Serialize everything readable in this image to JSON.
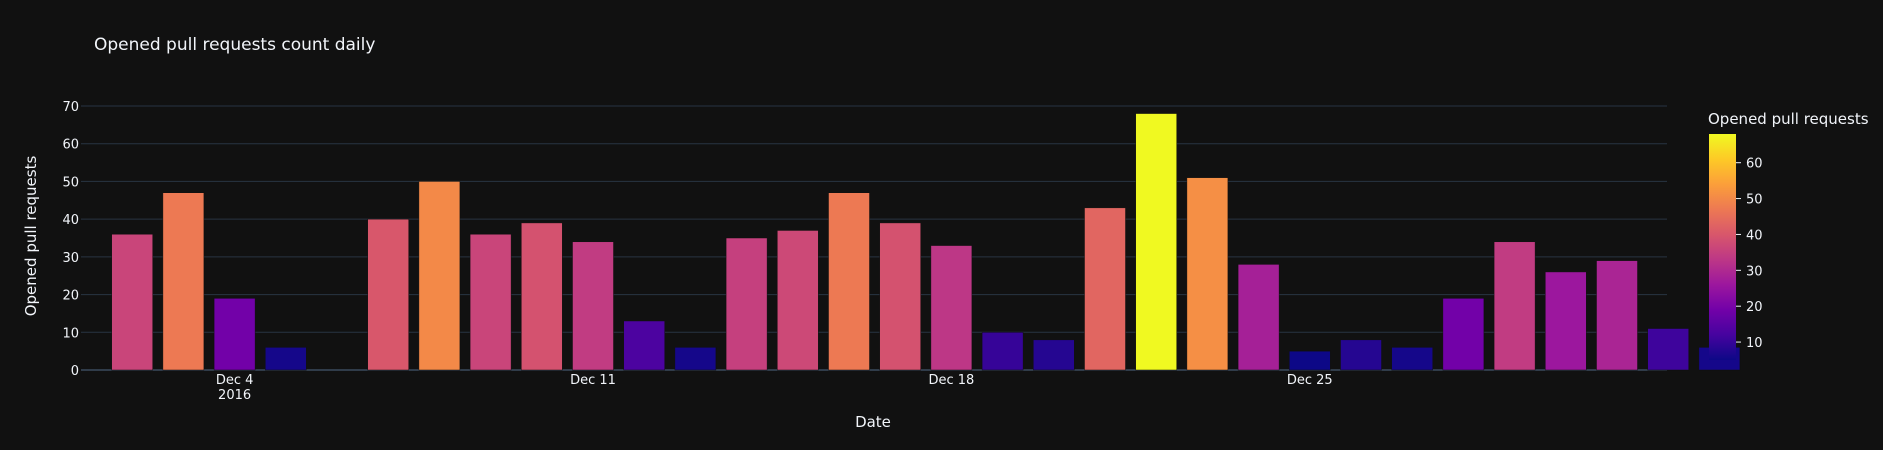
{
  "chart_data": {
    "type": "bar",
    "title": "Opened pull requests count daily",
    "xlabel": "Date",
    "ylabel": "Opened pull requests",
    "x": [
      "2016-12-02",
      "2016-12-03",
      "2016-12-04",
      "2016-12-05",
      "2016-12-06",
      "2016-12-07",
      "2016-12-08",
      "2016-12-09",
      "2016-12-10",
      "2016-12-11",
      "2016-12-12",
      "2016-12-13",
      "2016-12-14",
      "2016-12-15",
      "2016-12-16",
      "2016-12-17",
      "2016-12-18",
      "2016-12-19",
      "2016-12-20",
      "2016-12-21",
      "2016-12-22",
      "2016-12-23",
      "2016-12-24",
      "2016-12-25",
      "2016-12-26",
      "2016-12-27",
      "2016-12-28",
      "2016-12-29",
      "2016-12-30",
      "2016-12-31",
      "2017-01-01",
      "2017-01-02"
    ],
    "values": [
      36,
      47,
      19,
      6,
      null,
      40,
      50,
      36,
      39,
      34,
      13,
      6,
      35,
      37,
      47,
      39,
      33,
      10,
      8,
      43,
      68,
      51,
      28,
      5,
      8,
      6,
      19,
      34,
      26,
      29,
      11,
      6
    ],
    "ylim": [
      0,
      70
    ],
    "yticks": [
      0,
      10,
      20,
      30,
      40,
      50,
      60,
      70
    ],
    "xticks": [
      {
        "date": "2016-12-04",
        "label": "Dec 4",
        "sublabel": "2016"
      },
      {
        "date": "2016-12-11",
        "label": "Dec 11",
        "sublabel": ""
      },
      {
        "date": "2016-12-18",
        "label": "Dec 18",
        "sublabel": ""
      },
      {
        "date": "2016-12-25",
        "label": "Dec 25",
        "sublabel": ""
      }
    ],
    "grid": true,
    "colorbar": {
      "title": "Opened pull requests",
      "colorscale": "Plasma",
      "range": [
        5,
        68
      ],
      "ticks": [
        10,
        20,
        30,
        40,
        50,
        60
      ]
    },
    "colors": {
      "background": "#111111",
      "grid": "#283442",
      "text": "#f2f5fa"
    }
  }
}
